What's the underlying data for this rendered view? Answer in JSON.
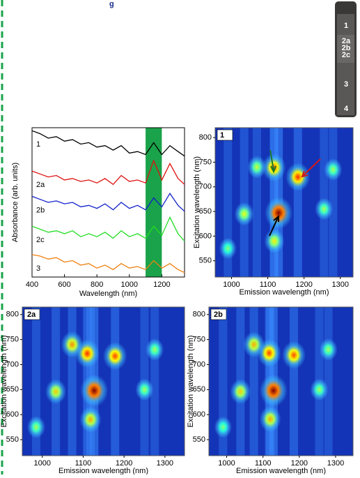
{
  "heading": "g",
  "vial": {
    "labels": [
      "1",
      "2a",
      "2b",
      "2c",
      "3",
      "4"
    ]
  },
  "chart_data": [
    {
      "type": "line",
      "xlabel": "Wavelength (nm)",
      "ylabel": "Absorbance (arb. units)",
      "x": [
        400,
        450,
        500,
        550,
        600,
        650,
        700,
        750,
        800,
        850,
        900,
        950,
        1000,
        1050,
        1100,
        1150,
        1200,
        1250,
        1300,
        1340
      ],
      "xlim": [
        400,
        1340
      ],
      "xticks": [
        400,
        600,
        800,
        1000,
        1200
      ],
      "ylim": [
        0,
        10
      ],
      "band": [
        1100,
        1200
      ],
      "band_color": "#1aa34a",
      "series": [
        {
          "name": "1",
          "color": "#000000",
          "values": [
            9.8,
            9.6,
            9.3,
            9.4,
            9.1,
            9.2,
            8.9,
            9.0,
            8.7,
            8.8,
            8.5,
            8.8,
            8.3,
            8.4,
            8.2,
            9.0,
            8.2,
            8.8,
            8.4,
            8.1
          ]
        },
        {
          "name": "2a",
          "color": "#e01010",
          "values": [
            7.1,
            6.9,
            6.7,
            6.8,
            6.5,
            6.6,
            6.4,
            6.5,
            6.3,
            6.6,
            6.2,
            6.8,
            6.4,
            6.5,
            6.3,
            7.8,
            6.5,
            7.6,
            6.6,
            6.2
          ]
        },
        {
          "name": "2b",
          "color": "#1020c8",
          "values": [
            5.4,
            5.2,
            5.0,
            5.1,
            4.9,
            5.0,
            4.7,
            4.8,
            4.6,
            4.9,
            4.5,
            5.0,
            4.6,
            4.8,
            4.5,
            5.3,
            4.7,
            5.6,
            4.8,
            4.4
          ]
        },
        {
          "name": "2c",
          "color": "#22dd22",
          "values": [
            3.4,
            3.2,
            3.0,
            3.1,
            2.9,
            3.1,
            2.7,
            2.9,
            2.7,
            3.0,
            2.6,
            3.1,
            2.7,
            2.9,
            2.6,
            3.4,
            2.8,
            4.0,
            2.9,
            2.4
          ]
        },
        {
          "name": "3",
          "color": "#f08010",
          "values": [
            1.5,
            1.4,
            1.2,
            1.3,
            1.0,
            1.1,
            0.8,
            0.9,
            0.6,
            0.8,
            0.5,
            0.9,
            0.6,
            0.7,
            0.5,
            1.1,
            0.6,
            0.9,
            0.5,
            0.3
          ]
        }
      ]
    },
    {
      "type": "heatmap",
      "label": "1",
      "xlabel": "Emission wavelength (nm)",
      "ylabel": "Excitation wavelength (nm)",
      "xlim": [
        955,
        1335
      ],
      "xticks": [
        1000,
        1100,
        1200,
        1300
      ],
      "ylim": [
        517,
        820
      ],
      "yticks": [
        550,
        600,
        650,
        700,
        750,
        800
      ],
      "x": [
        1117,
        1183,
        1130,
        1118,
        1070,
        1035,
        1255,
        1280,
        990
      ],
      "y": [
        739,
        720,
        647,
        590,
        740,
        645,
        655,
        735,
        575
      ],
      "intensity": [
        0.7,
        0.75,
        1.0,
        0.45,
        0.35,
        0.4,
        0.3,
        0.3,
        0.25
      ]
    },
    {
      "type": "heatmap",
      "label": "2a",
      "xlabel": "Emission wavelength (nm)",
      "ylabel": "Excitation wavelength (nm)",
      "xlim": [
        951,
        1348
      ],
      "xticks": [
        1000,
        1100,
        1200,
        1300
      ],
      "ylim": [
        518,
        815
      ],
      "yticks": [
        550,
        600,
        650,
        700,
        750,
        800
      ],
      "x": [
        1110,
        1178,
        1127,
        1118,
        1073,
        1033,
        1250,
        1275,
        985
      ],
      "y": [
        722,
        717,
        648,
        590,
        740,
        646,
        650,
        730,
        575
      ],
      "intensity": [
        0.75,
        0.72,
        1.0,
        0.55,
        0.6,
        0.5,
        0.3,
        0.3,
        0.3
      ]
    },
    {
      "type": "heatmap",
      "label": "2b",
      "xlabel": "Emission wavelength (nm)",
      "ylabel": "Excitation wavelength (nm)",
      "xlim": [
        951,
        1348
      ],
      "xticks": [
        1000,
        1100,
        1200,
        1300
      ],
      "ylim": [
        518,
        815
      ],
      "yticks": [
        550,
        600,
        650,
        700,
        750,
        800
      ],
      "x": [
        1117,
        1185,
        1129,
        1120,
        1075,
        1038,
        1255,
        1280,
        990
      ],
      "y": [
        723,
        719,
        648,
        591,
        740,
        646,
        650,
        730,
        575
      ],
      "intensity": [
        0.72,
        0.7,
        1.0,
        0.55,
        0.55,
        0.5,
        0.3,
        0.3,
        0.25
      ]
    }
  ]
}
